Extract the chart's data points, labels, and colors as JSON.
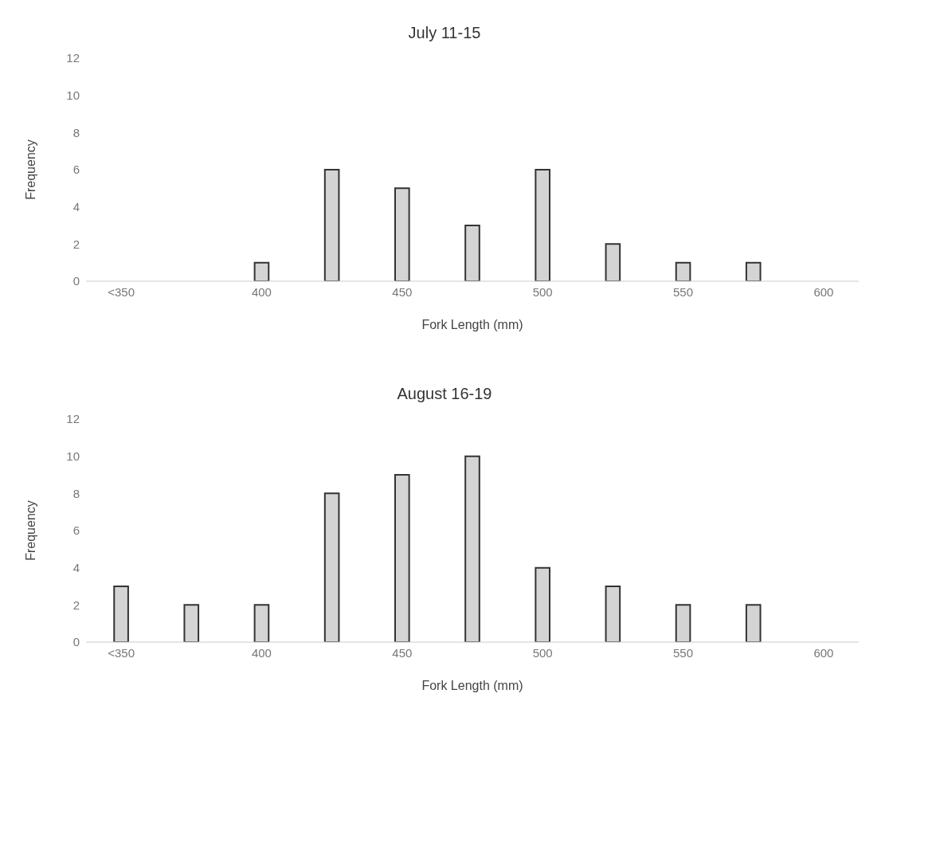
{
  "chart_data": [
    {
      "type": "bar",
      "title": "July 11-15",
      "xlabel": "Fork Length (mm)",
      "ylabel": "Frequency",
      "categories": [
        "<350",
        null,
        "400",
        null,
        "450",
        null,
        "500",
        null,
        "550",
        null,
        "600"
      ],
      "values": [
        0,
        0,
        1,
        6,
        5,
        3,
        6,
        2,
        1,
        1,
        0
      ],
      "color": "#d4d4d4",
      "ylim": [
        0,
        12
      ],
      "yticks": [
        0,
        2,
        4,
        6,
        8,
        10,
        12
      ],
      "grid": false,
      "legend": false
    },
    {
      "type": "bar",
      "title": "August 16-19",
      "xlabel": "Fork Length (mm)",
      "ylabel": "Frequency",
      "categories": [
        "<350",
        null,
        "400",
        null,
        "450",
        null,
        "500",
        null,
        "550",
        null,
        "600"
      ],
      "values": [
        3,
        2,
        2,
        8,
        9,
        10,
        4,
        3,
        2,
        2,
        0
      ],
      "color": "#d4d4d4",
      "ylim": [
        0,
        12
      ],
      "yticks": [
        0,
        2,
        4,
        6,
        8,
        10,
        12
      ],
      "grid": false,
      "legend": false
    }
  ]
}
